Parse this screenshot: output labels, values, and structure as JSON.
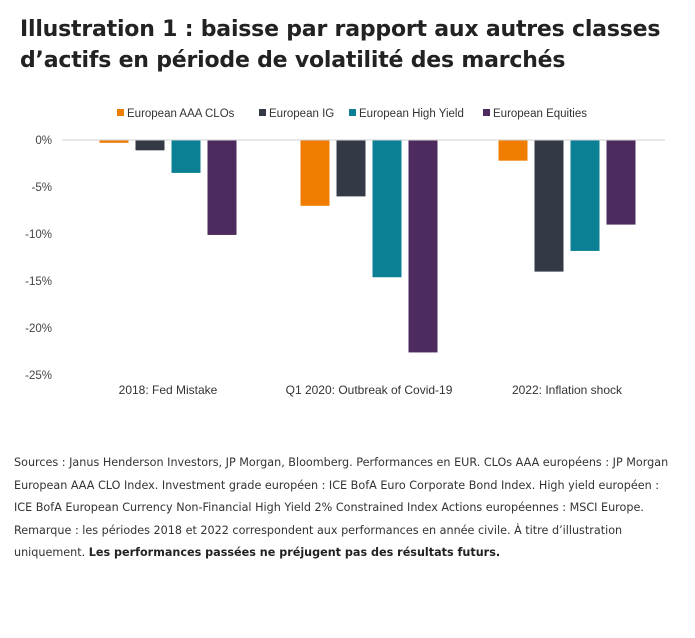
{
  "title": {
    "line1": "Illustration 1 : baisse par rapport aux autres classes",
    "line2": "d’actifs en période de volatilité des marchés"
  },
  "chart_data": {
    "type": "bar",
    "categories": [
      "2018: Fed Mistake",
      "Q1 2020: Outbreak of Covid-19",
      "2022: Inflation shock"
    ],
    "series": [
      {
        "name": "European AAA CLOs",
        "color": "#f07c00",
        "values": [
          -0.3,
          -7.0,
          -2.2
        ]
      },
      {
        "name": "European IG",
        "color": "#333a45",
        "values": [
          -1.1,
          -6.0,
          -14.0
        ]
      },
      {
        "name": "European High Yield",
        "color": "#0b7f93",
        "values": [
          -3.5,
          -14.6,
          -11.8
        ]
      },
      {
        "name": "European Equities",
        "color": "#4e2b5f",
        "values": [
          -10.1,
          -22.6,
          -9.0
        ]
      }
    ],
    "yticks": [
      "0%",
      "-5%",
      "-10%",
      "-15%",
      "-20%",
      "-25%"
    ],
    "ytick_values": [
      0,
      -5,
      -10,
      -15,
      -20,
      -25
    ],
    "ylim": [
      -25,
      0
    ],
    "legend_position": "top",
    "grid": false
  },
  "notes": {
    "sources": "Sources : Janus Henderson Investors, JP Morgan, Bloomberg. Performances en EUR. CLOs AAA européens : JP Morgan European AAA CLO Index. Investment grade européen : ICE BofA Euro Corporate Bond Index. High yield européen : ICE BofA European Currency Non-Financial High Yield 2% Constrained Index Actions européennes : MSCI Europe.",
    "remark": "Remarque : les périodes 2018 et 2022 correspondent aux performances en année civile. À titre d’illustration uniquement.",
    "disclaimer": "Les performances passées ne préjugent pas des résultats futurs."
  }
}
